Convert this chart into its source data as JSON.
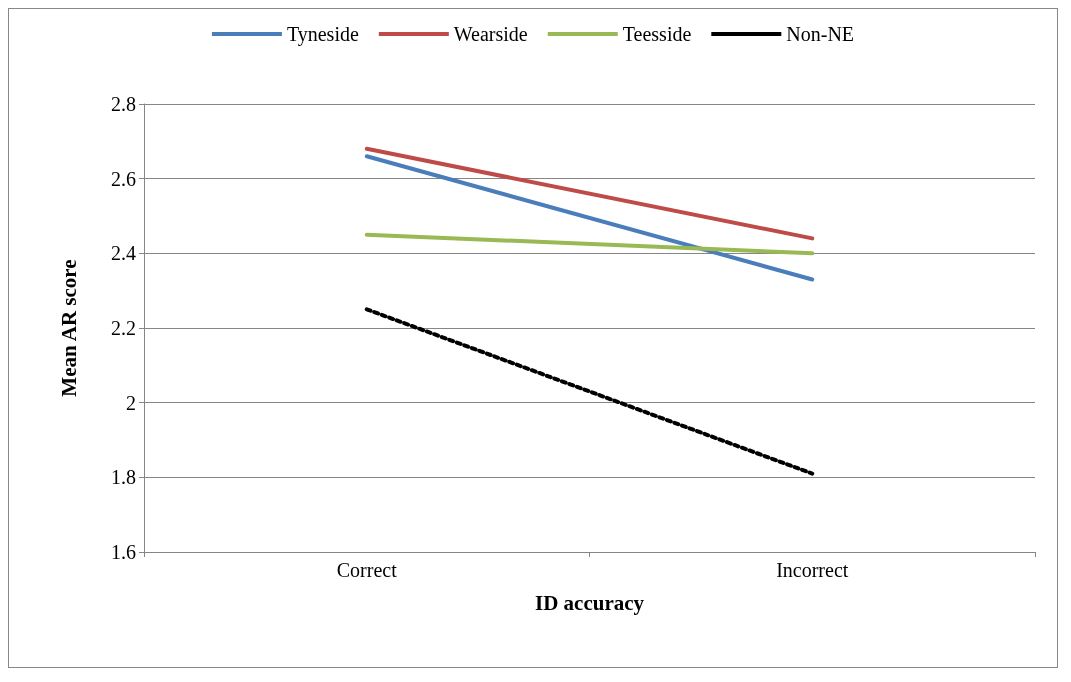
{
  "chart_data": {
    "type": "line",
    "xlabel": "ID accuracy",
    "ylabel": "Mean AR score",
    "categories": [
      "Correct",
      "Incorrect"
    ],
    "series": [
      {
        "name": "Tyneside",
        "color": "#4a7ebb",
        "values": [
          2.66,
          2.33
        ]
      },
      {
        "name": "Wearside",
        "color": "#be4b48",
        "values": [
          2.68,
          2.44
        ]
      },
      {
        "name": "Teesside",
        "color": "#98b954",
        "values": [
          2.45,
          2.4
        ]
      },
      {
        "name": "Non-NE",
        "color": "#000000",
        "values": [
          2.25,
          1.81
        ],
        "line_style": "dotted"
      }
    ],
    "ylim": [
      1.6,
      2.8
    ],
    "yticks": [
      1.6,
      1.8,
      2,
      2.2,
      2.4,
      2.6,
      2.8
    ],
    "grid": "y",
    "legend": "top",
    "marker": "none"
  }
}
